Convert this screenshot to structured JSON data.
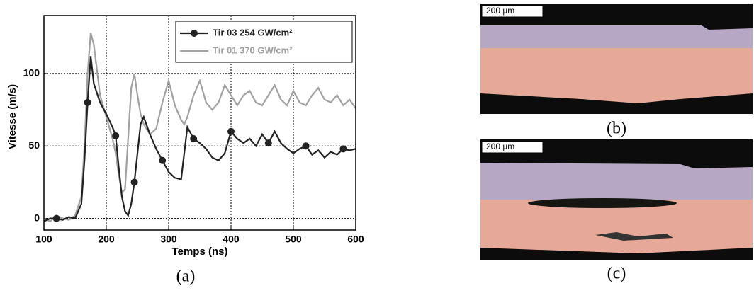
{
  "chart_data": {
    "type": "line",
    "x_label": "Temps (ns)",
    "y_label": "Vitesse (m/s)",
    "x": [
      100,
      110,
      120,
      130,
      140,
      150,
      160,
      165,
      170,
      175,
      180,
      190,
      200,
      210,
      215,
      220,
      225,
      230,
      235,
      240,
      245,
      250,
      255,
      260,
      270,
      280,
      290,
      300,
      310,
      320,
      325,
      330,
      340,
      350,
      360,
      370,
      380,
      390,
      400,
      410,
      420,
      430,
      440,
      450,
      460,
      470,
      480,
      490,
      500,
      510,
      520,
      530,
      540,
      550,
      560,
      570,
      580,
      590,
      600
    ],
    "series": [
      {
        "name": "Tir 03 254 GW/cm²",
        "color": "#222222",
        "marker": "circle",
        "values": [
          -2,
          0,
          0,
          -1,
          1,
          0,
          10,
          40,
          80,
          112,
          93,
          80,
          72,
          63,
          57,
          35,
          15,
          5,
          2,
          10,
          25,
          45,
          65,
          70,
          58,
          48,
          40,
          32,
          28,
          27,
          45,
          63,
          55,
          52,
          48,
          42,
          40,
          45,
          60,
          55,
          52,
          55,
          50,
          58,
          52,
          60,
          52,
          48,
          45,
          48,
          50,
          44,
          47,
          42,
          46,
          44,
          48,
          47,
          48
        ]
      },
      {
        "name": "Tir 01 370 GW/cm²",
        "color": "#a0a0a0",
        "values": [
          0,
          -2,
          2,
          0,
          -1,
          2,
          15,
          50,
          100,
          128,
          120,
          85,
          70,
          55,
          45,
          30,
          18,
          20,
          55,
          90,
          100,
          85,
          72,
          65,
          58,
          62,
          80,
          95,
          78,
          68,
          65,
          70,
          85,
          95,
          80,
          75,
          80,
          92,
          85,
          78,
          85,
          88,
          80,
          78,
          85,
          92,
          82,
          78,
          88,
          80,
          78,
          85,
          90,
          82,
          80,
          85,
          78,
          82,
          76
        ]
      }
    ],
    "xlim": [
      100,
      600
    ],
    "xticks": [
      100,
      200,
      300,
      400,
      500,
      600
    ],
    "ylim": [
      -8,
      140
    ],
    "yticks": [
      0,
      50,
      100
    ],
    "grid": true,
    "legend": "upper-right"
  },
  "figure": {
    "caption_a": "(a)",
    "caption_b": "(b)",
    "caption_c": "(c)",
    "scale_b": "200 µm",
    "scale_c": "200 µm"
  }
}
